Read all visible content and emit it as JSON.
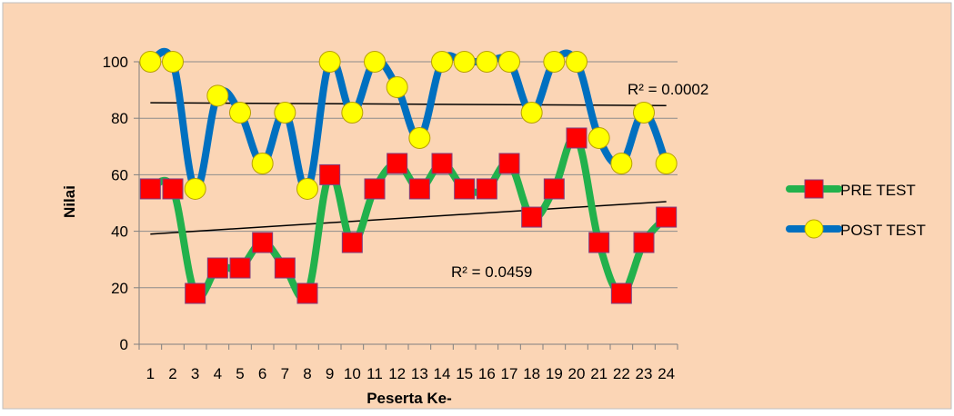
{
  "chart_data": {
    "type": "line",
    "title": "",
    "xlabel": "Peserta Ke-",
    "ylabel": "Nilai",
    "ylim": [
      0,
      100
    ],
    "yticks": [
      0,
      20,
      40,
      60,
      80,
      100
    ],
    "categories": [
      "1",
      "2",
      "3",
      "4",
      "5",
      "6",
      "7",
      "8",
      "9",
      "10",
      "11",
      "12",
      "13",
      "14",
      "15",
      "16",
      "17",
      "18",
      "19",
      "20",
      "21",
      "22",
      "23",
      "24"
    ],
    "series": [
      {
        "name": "PRE TEST",
        "line_color": "#22b14c",
        "marker": "square",
        "marker_color": "#ff0000",
        "values": [
          55,
          55,
          18,
          27,
          27,
          36,
          27,
          18,
          60,
          36,
          55,
          64,
          55,
          64,
          55,
          55,
          64,
          45,
          55,
          73,
          36,
          18,
          36,
          45
        ],
        "trendline": {
          "start": 39,
          "end": 50.5,
          "r2_label": "R² = 0.0459"
        }
      },
      {
        "name": "POST TEST",
        "line_color": "#0070c0",
        "marker": "circle",
        "marker_color": "#ffff00",
        "values": [
          100,
          100,
          55,
          88,
          82,
          64,
          82,
          55,
          100,
          82,
          100,
          91,
          73,
          100,
          100,
          100,
          100,
          82,
          100,
          100,
          73,
          64,
          82,
          64
        ],
        "trendline": {
          "start": 85.5,
          "end": 84.5,
          "r2_label": "R² = 0.0002"
        }
      }
    ],
    "grid": true,
    "legend_position": "right",
    "background_color": "#fbd5b5",
    "gridline_color": "#8c8c8c",
    "trendline_color": "#000000"
  }
}
